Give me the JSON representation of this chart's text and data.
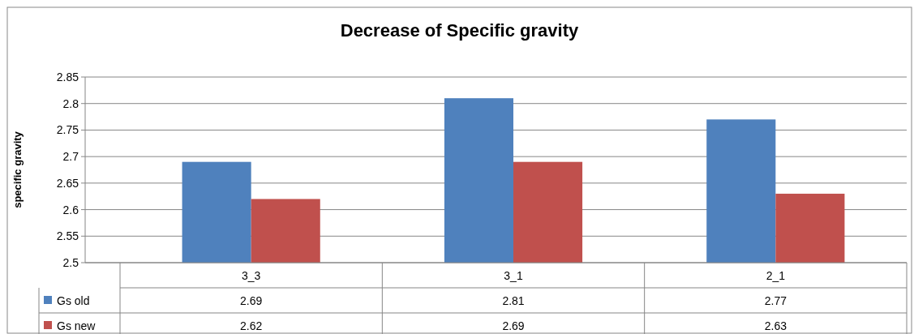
{
  "chart_data": {
    "type": "bar",
    "title": "Decrease of Specific gravity",
    "ylabel": "specific gravity",
    "categories": [
      "3_3",
      "3_1",
      "2_1"
    ],
    "series": [
      {
        "name": "Gs old",
        "color": "#4f81bd",
        "values": [
          2.69,
          2.81,
          2.77
        ]
      },
      {
        "name": "Gs new",
        "color": "#c0504d",
        "values": [
          2.62,
          2.69,
          2.63
        ]
      }
    ],
    "ylim": [
      2.5,
      2.85
    ],
    "yticks": [
      2.5,
      2.55,
      2.6,
      2.65,
      2.7,
      2.75,
      2.8,
      2.85
    ],
    "grid": "y",
    "legend": "bottom",
    "data_labels": true
  }
}
